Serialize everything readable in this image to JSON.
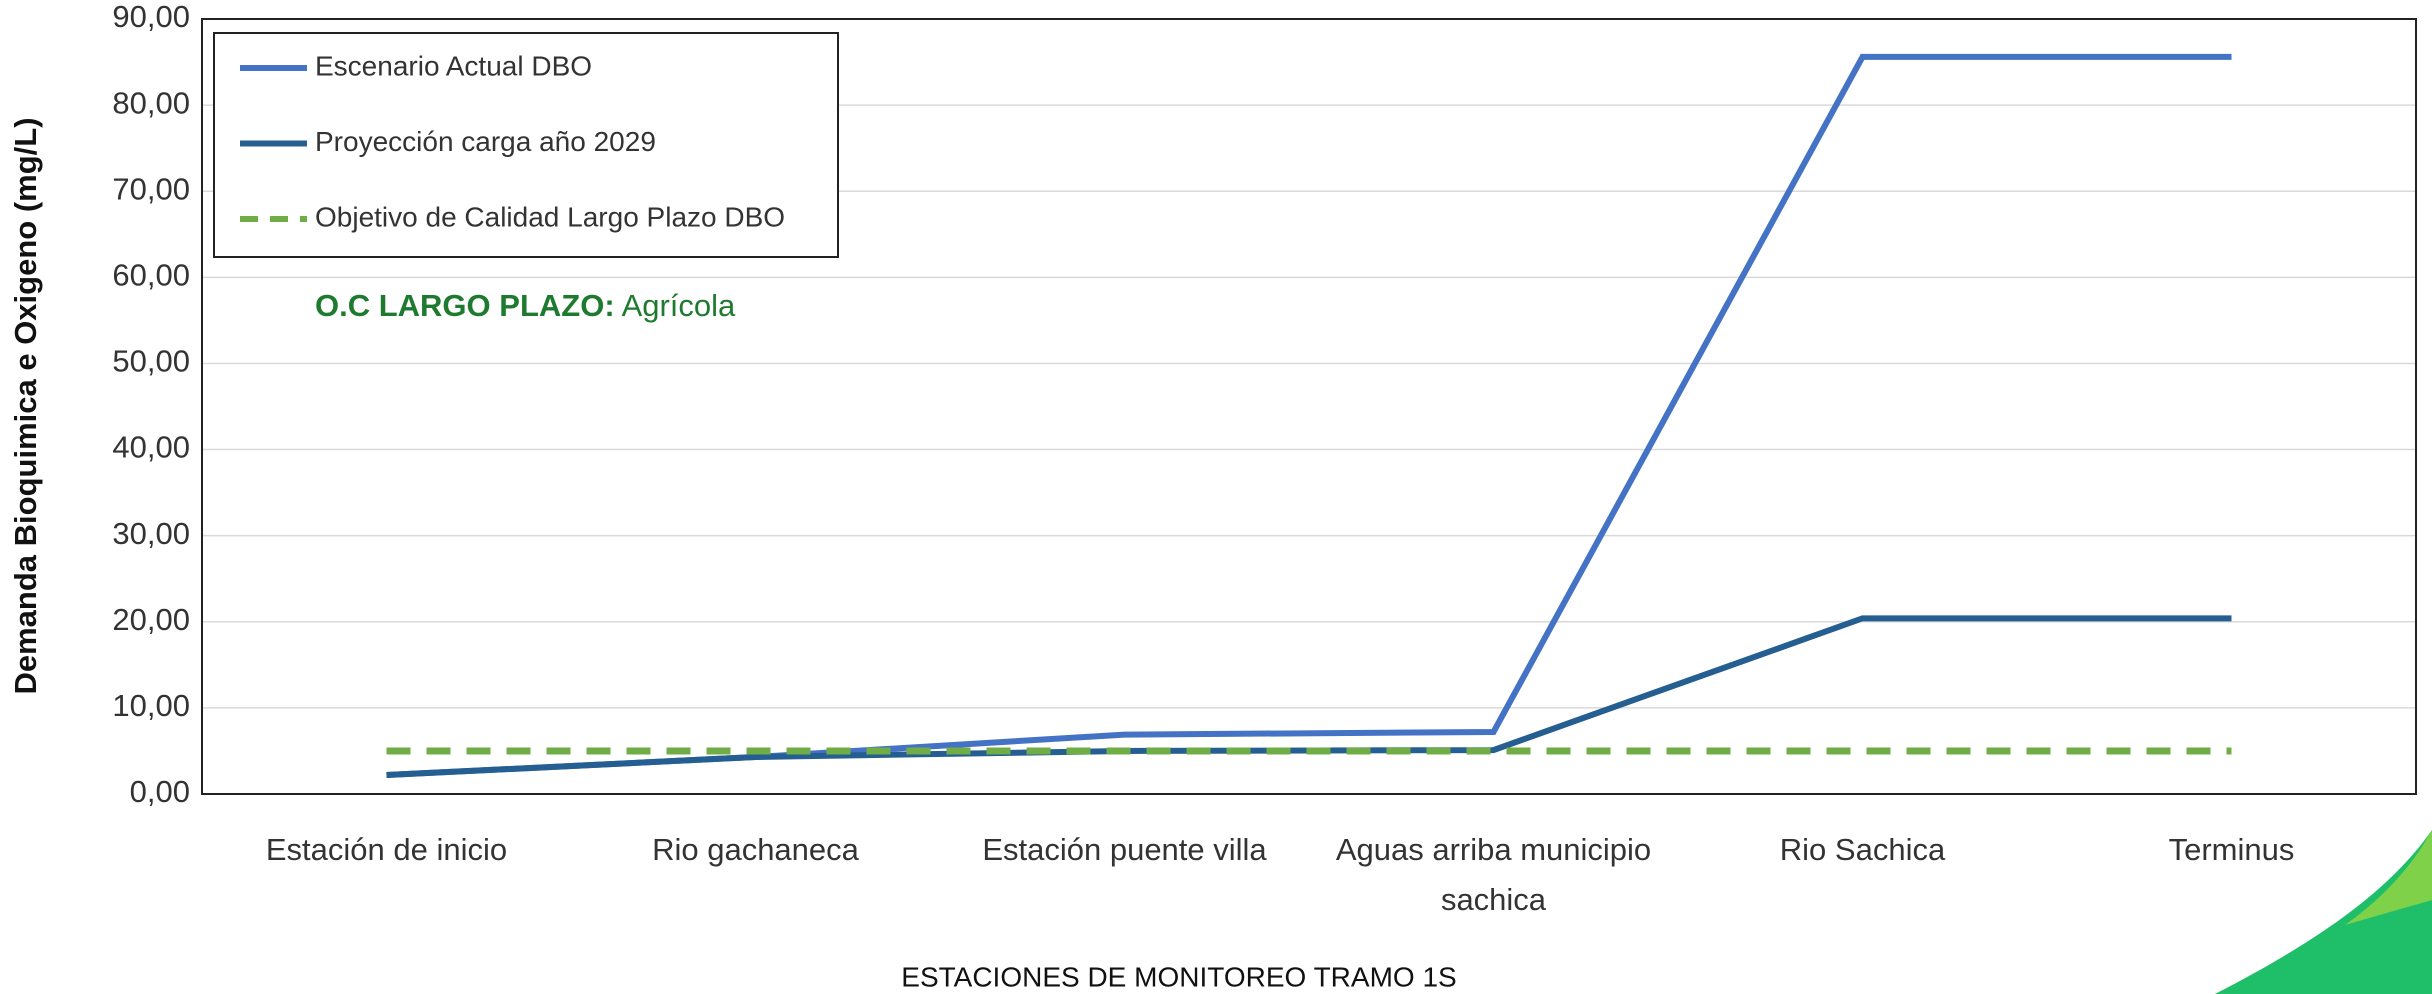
{
  "chart_data": {
    "type": "line",
    "y_label": "Demanda Bioquimica e Oxigeno  (mg/L)",
    "x_label": "ESTACIONES DE MONITOREO TRAMO 1S",
    "annotation": {
      "label": "O.C LARGO PLAZO:",
      "text": "Agrícola"
    },
    "categories": [
      "Estación de inicio",
      "Rio gachaneca",
      "Estación puente villa",
      "Aguas arriba municipio sachica",
      "Rio Sachica",
      "Terminus"
    ],
    "series": [
      {
        "name": "Escenario Actual DBO",
        "color": "#4472c4",
        "values": [
          2.2,
          4.3,
          6.9,
          7.2,
          85.6,
          85.6
        ]
      },
      {
        "name": "Proyección carga año 2029",
        "color": "#255e91",
        "values": [
          2.2,
          4.3,
          5.0,
          5.1,
          20.4,
          20.4
        ]
      },
      {
        "name": "Objetivo de Calidad Largo Plazo DBO",
        "color": "#70ad47",
        "dashed": true,
        "values": [
          5,
          5,
          5,
          5,
          5,
          5
        ]
      }
    ],
    "ylim": [
      0,
      90
    ],
    "yticks": [
      {
        "value": 0,
        "label": "0,00"
      },
      {
        "value": 10,
        "label": "10,00"
      },
      {
        "value": 20,
        "label": "20,00"
      },
      {
        "value": 30,
        "label": "30,00"
      },
      {
        "value": 40,
        "label": "40,00"
      },
      {
        "value": 50,
        "label": "50,00"
      },
      {
        "value": 60,
        "label": "60,00"
      },
      {
        "value": 70,
        "label": "70,00"
      },
      {
        "value": 80,
        "label": "80,00"
      },
      {
        "value": 90,
        "label": "90,00"
      }
    ],
    "grid": true
  }
}
